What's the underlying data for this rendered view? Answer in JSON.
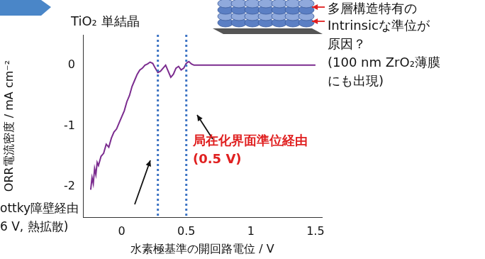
{
  "chart_data": {
    "type": "line",
    "title": "TiO₂ 単結晶",
    "x_label": "水素極基準の開回路電位 / V",
    "y_label": "ORR電流密度 / mA cm⁻²",
    "x": [
      -0.24,
      -0.23,
      -0.22,
      -0.21,
      -0.2,
      -0.19,
      -0.18,
      -0.16,
      -0.14,
      -0.12,
      -0.1,
      -0.08,
      -0.06,
      -0.04,
      -0.02,
      0,
      0.02,
      0.04,
      0.06,
      0.08,
      0.1,
      0.12,
      0.14,
      0.16,
      0.18,
      0.2,
      0.22,
      0.24,
      0.26,
      0.28,
      0.3,
      0.32,
      0.34,
      0.36,
      0.38,
      0.4,
      0.42,
      0.44,
      0.46,
      0.48,
      0.5,
      0.52,
      0.54,
      0.56,
      0.58,
      0.6,
      0.7,
      0.8,
      0.9,
      1.0,
      1.1,
      1.2,
      1.3,
      1.4,
      1.5
    ],
    "values": [
      -2.05,
      -1.85,
      -1.95,
      -1.7,
      -1.8,
      -1.6,
      -1.65,
      -1.5,
      -1.45,
      -1.3,
      -1.35,
      -1.2,
      -1.1,
      -1.05,
      -0.95,
      -0.85,
      -0.75,
      -0.6,
      -0.5,
      -0.35,
      -0.25,
      -0.15,
      -0.08,
      -0.05,
      0,
      0.02,
      0.05,
      0.03,
      -0.05,
      -0.12,
      -0.1,
      -0.05,
      0,
      -0.1,
      -0.2,
      -0.15,
      -0.05,
      -0.02,
      -0.08,
      -0.05,
      0.03,
      0.06,
      0.02,
      0,
      0,
      0,
      0,
      0,
      0,
      0,
      0,
      0,
      0,
      0,
      0
    ],
    "color": "#7b2c8f",
    "marker": "none",
    "xlim": [
      -0.3,
      1.55
    ],
    "xticks": [
      0,
      0.5,
      1,
      1.5
    ],
    "ylim": [
      -2.5,
      0.5
    ],
    "yticks": [
      -2,
      -1,
      0
    ],
    "grid": false,
    "reference_lines": [
      0.28,
      0.5
    ],
    "annotations": [
      "多層構造特有の",
      "Intrinsicな準位が",
      "原因？",
      "(100 nm ZrO₂薄膜",
      "にも出現)",
      "局在化界面準位経由",
      "(0.5 V)",
      "ottky障壁経由",
      "6 V, 熱拡散)"
    ]
  }
}
